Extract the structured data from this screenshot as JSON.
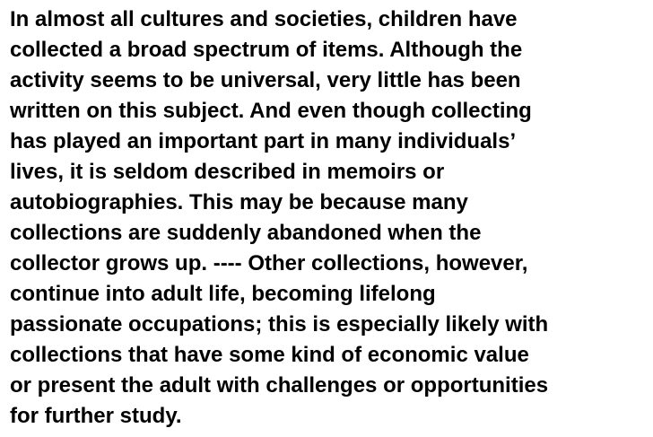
{
  "passage": {
    "lines": [
      "In almost all cultures and societies, children have",
      "collected a broad spectrum of items. Although the",
      "activity seems to be universal, very little has been",
      "written on this subject. And even though collecting",
      "has played an important part in many individuals’",
      "lives, it is seldom described in memoirs or",
      "autobiographies. This may be because many",
      "collections are suddenly abandoned when the",
      "collector grows up. ---- Other collections, however,",
      "continue into adult life, becoming lifelong",
      "passionate occupations; this is especially likely with",
      "collections that have some kind of economic value",
      "or present the adult with challenges or opportunities",
      "for further study."
    ]
  }
}
